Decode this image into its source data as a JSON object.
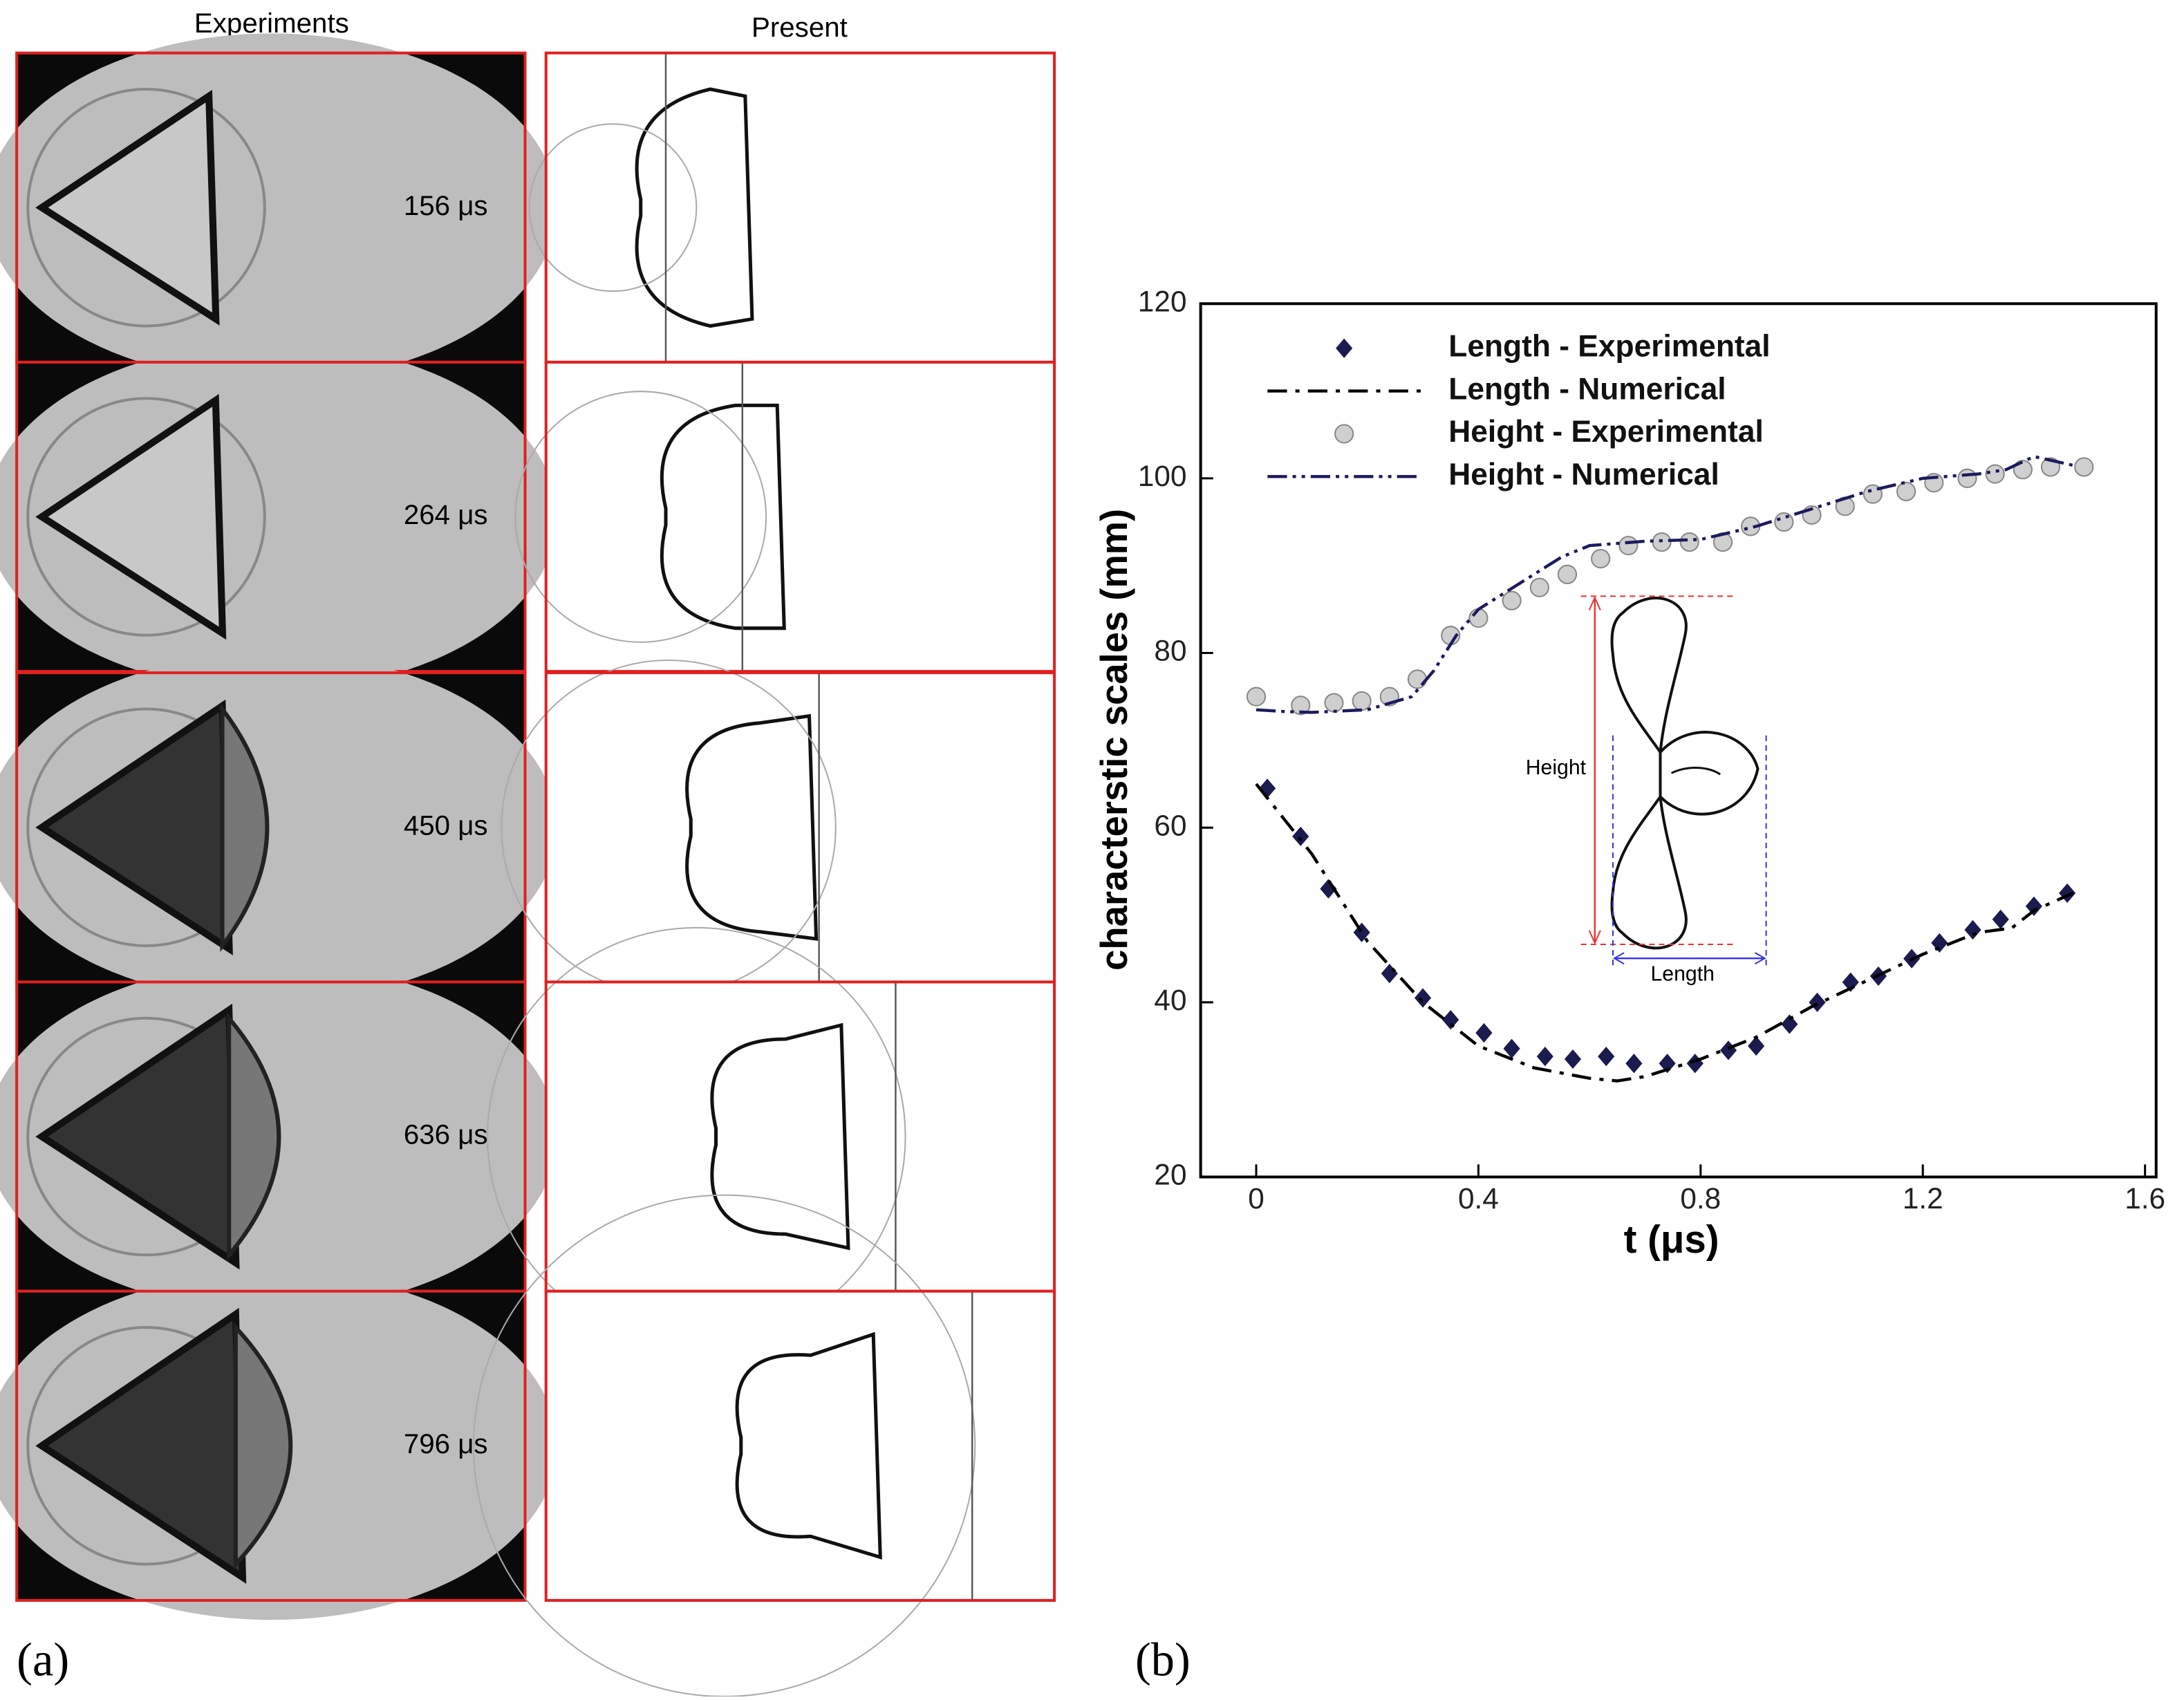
{
  "panel_a": {
    "label": "(a)",
    "columns": [
      "Experiments",
      "Present"
    ],
    "times": [
      "156 μs",
      "264 μs",
      "450 μs",
      "636 μs",
      "796 μs"
    ]
  },
  "panel_b": {
    "label": "(b)",
    "inset": {
      "height_label": "Height",
      "length_label": "Length"
    }
  },
  "chart_data": {
    "type": "line",
    "x_label": "t (μs)",
    "y_label": "characterstic scales (mm)",
    "xlim": [
      -0.1,
      1.62
    ],
    "ylim": [
      20,
      120
    ],
    "xticks": [
      0,
      0.4,
      0.8,
      1.2,
      1.6
    ],
    "yticks": [
      20,
      40,
      60,
      80,
      100,
      120
    ],
    "legend": "top-left",
    "series": [
      {
        "name": "Length - Experimental",
        "color": "#1b1b4f",
        "mode": "markers",
        "marker": "diamond",
        "x": [
          0.02,
          0.08,
          0.13,
          0.19,
          0.24,
          0.3,
          0.35,
          0.41,
          0.46,
          0.52,
          0.57,
          0.63,
          0.68,
          0.74,
          0.79,
          0.85,
          0.9,
          0.96,
          1.01,
          1.07,
          1.12,
          1.18,
          1.23,
          1.29,
          1.34,
          1.4,
          1.46
        ],
        "values": [
          64.5,
          59,
          53,
          48,
          43.3,
          40.5,
          38,
          36.5,
          34.7,
          33.8,
          33.5,
          33.8,
          33,
          33,
          33,
          34.5,
          35,
          37.5,
          40,
          42.3,
          43,
          45,
          46.8,
          48.3,
          49.5,
          51,
          52.5
        ]
      },
      {
        "name": "Length - Numerical",
        "color": "#000000",
        "mode": "line",
        "dash": "dashdot",
        "x": [
          0,
          0.1,
          0.2,
          0.3,
          0.4,
          0.5,
          0.6,
          0.65,
          0.7,
          0.8,
          0.9,
          1.0,
          1.1,
          1.2,
          1.3,
          1.36,
          1.4,
          1.47
        ],
        "values": [
          65,
          57,
          47,
          40,
          35,
          32.5,
          31.3,
          31,
          31.5,
          33.5,
          36,
          39.5,
          42.5,
          45.5,
          48,
          48.5,
          50.5,
          52.5
        ]
      },
      {
        "name": "Height - Experimental",
        "color": "#cfcfcf",
        "mode": "markers",
        "marker": "circle",
        "x": [
          0,
          0.08,
          0.14,
          0.19,
          0.24,
          0.29,
          0.35,
          0.4,
          0.46,
          0.51,
          0.56,
          0.62,
          0.67,
          0.73,
          0.78,
          0.84,
          0.89,
          0.95,
          1.0,
          1.06,
          1.11,
          1.17,
          1.22,
          1.28,
          1.33,
          1.38,
          1.43,
          1.49
        ],
        "values": [
          75,
          74,
          74.3,
          74.5,
          75,
          77,
          82,
          84,
          86,
          87.5,
          89,
          90.8,
          92.3,
          92.7,
          92.7,
          92.7,
          94.5,
          95,
          95.8,
          96.8,
          98.2,
          98.5,
          99.5,
          100,
          100.5,
          101,
          101.3,
          101.3
        ]
      },
      {
        "name": "Height - Numerical",
        "color": "#1b1b5e",
        "mode": "line",
        "dash": "dashdotdot",
        "x": [
          0,
          0.05,
          0.1,
          0.2,
          0.28,
          0.32,
          0.36,
          0.4,
          0.5,
          0.55,
          0.6,
          0.7,
          0.8,
          0.9,
          1.0,
          1.1,
          1.2,
          1.3,
          1.35,
          1.4,
          1.47
        ],
        "values": [
          73.5,
          73.3,
          73.2,
          73.5,
          75,
          78,
          82,
          85,
          89,
          91,
          92.3,
          92.8,
          93,
          94.5,
          96.5,
          98.5,
          100,
          100.5,
          101,
          102.5,
          101.5
        ]
      }
    ]
  }
}
